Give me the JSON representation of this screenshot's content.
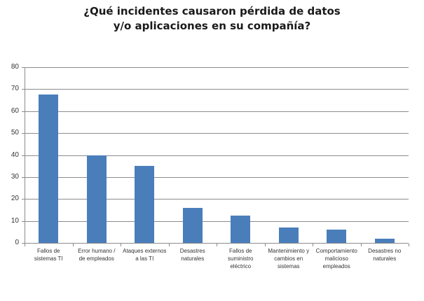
{
  "title_line1": "¿Qué incidentes causaron pérdida de datos",
  "title_line2": "y/o aplicaciones en su compañía?",
  "colors": {
    "bar": "#4a7ebb",
    "grid": "#8c8c8c"
  },
  "y_ticks": [
    "0",
    "10",
    "20",
    "30",
    "40",
    "50",
    "60",
    "70",
    "80"
  ],
  "categories": [
    {
      "l1": "Fallos de",
      "l2": "sistemas TI",
      "l3": ""
    },
    {
      "l1": "Error humano /",
      "l2": "de empleados",
      "l3": ""
    },
    {
      "l1": "Ataques externos",
      "l2": "a las TI",
      "l3": ""
    },
    {
      "l1": "Desastres",
      "l2": "naturales",
      "l3": ""
    },
    {
      "l1": "Fallos de",
      "l2": "suministro",
      "l3": "eléctrico"
    },
    {
      "l1": "Mantenimiento y",
      "l2": "cambios en",
      "l3": "sistemas"
    },
    {
      "l1": "Comportamiento",
      "l2": "malicioso",
      "l3": "empleados"
    },
    {
      "l1": "Desastres no",
      "l2": "naturales",
      "l3": ""
    }
  ],
  "chart_data": {
    "type": "bar",
    "title": "¿Qué incidentes causaron pérdida de datos y/o aplicaciones en su compañía?",
    "categories": [
      "Fallos de sistemas TI",
      "Error humano / de empleados",
      "Ataques externos a las TI",
      "Desastres naturales",
      "Fallos de suministro eléctrico",
      "Mantenimiento y cambios en sistemas",
      "Comportamiento malicioso empleados",
      "Desastres no naturales"
    ],
    "values": [
      67.5,
      40,
      35,
      16,
      12.5,
      7,
      6,
      2
    ],
    "xlabel": "",
    "ylabel": "",
    "ylim": [
      0,
      80
    ],
    "yticks": [
      0,
      10,
      20,
      30,
      40,
      50,
      60,
      70,
      80
    ],
    "grid": true,
    "legend": null
  }
}
